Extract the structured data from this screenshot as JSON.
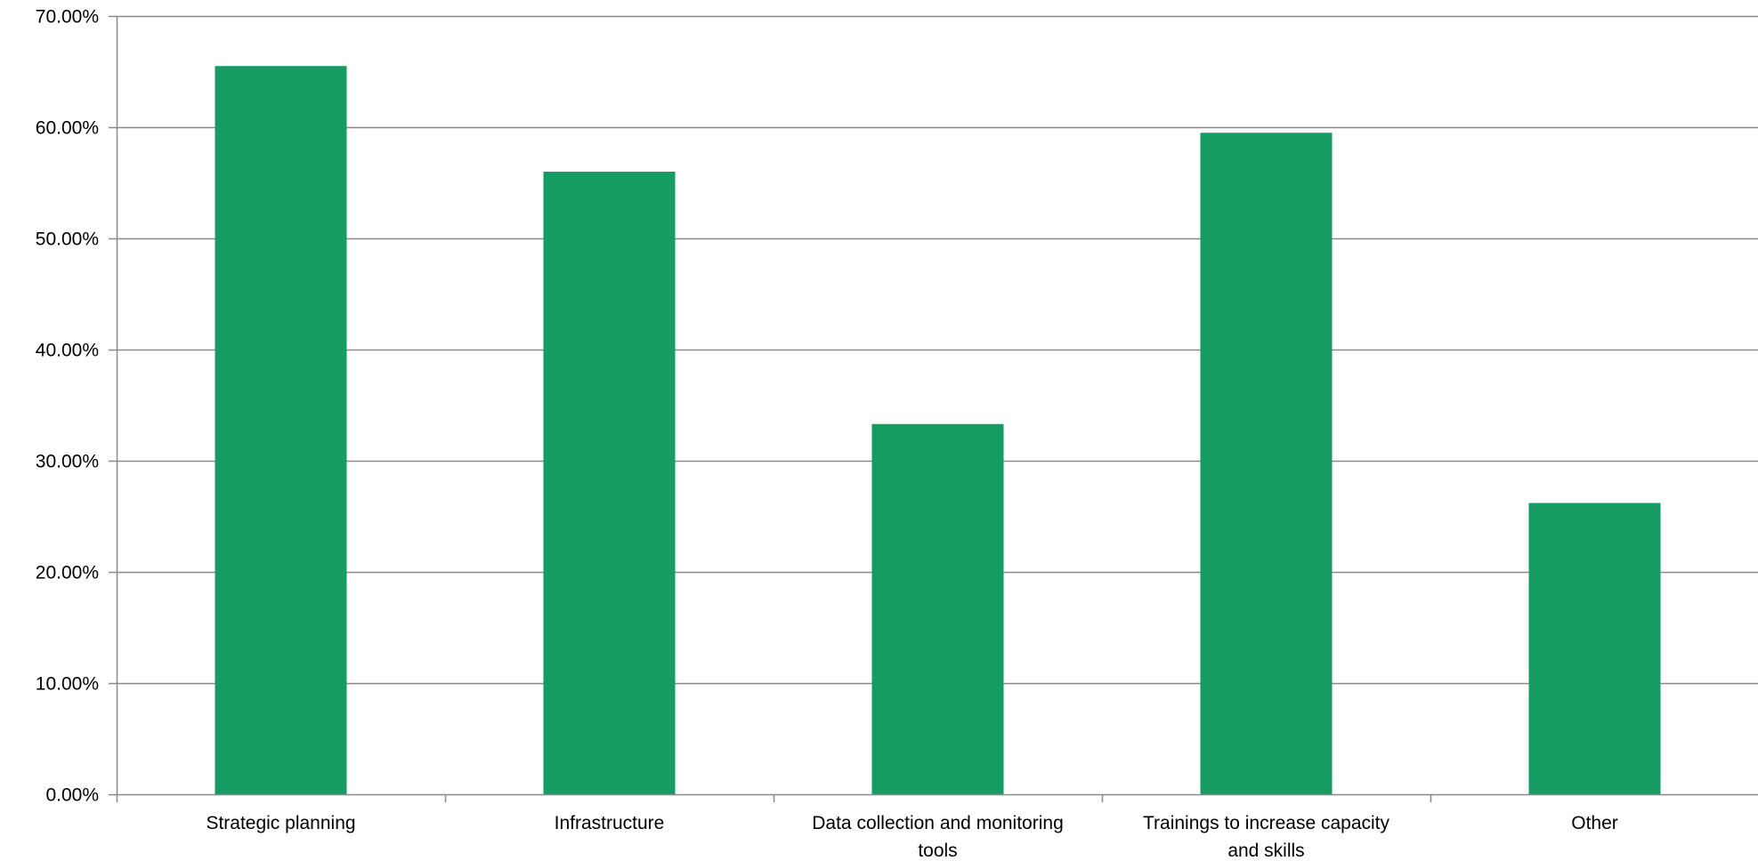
{
  "chart_data": {
    "type": "bar",
    "title": "",
    "xlabel": "",
    "ylabel": "",
    "categories": [
      [
        "Strategic planning"
      ],
      [
        "Infrastructure"
      ],
      [
        "Data collection and monitoring",
        "tools"
      ],
      [
        "Trainings to increase capacity",
        "and skills"
      ],
      [
        "Other"
      ]
    ],
    "values": [
      65.5,
      56.0,
      33.3,
      59.5,
      26.2
    ],
    "ylim": [
      0,
      70
    ],
    "yticks": [
      0,
      10,
      20,
      30,
      40,
      50,
      60,
      70
    ],
    "ytick_labels": [
      "0.00%",
      "10.00%",
      "20.00%",
      "30.00%",
      "40.00%",
      "50.00%",
      "60.00%",
      "70.00%"
    ],
    "grid": true,
    "legend": "none",
    "colors": {
      "bar": "#169B62",
      "grid": "#898989",
      "axis": "#898989",
      "text": "#000000"
    }
  }
}
